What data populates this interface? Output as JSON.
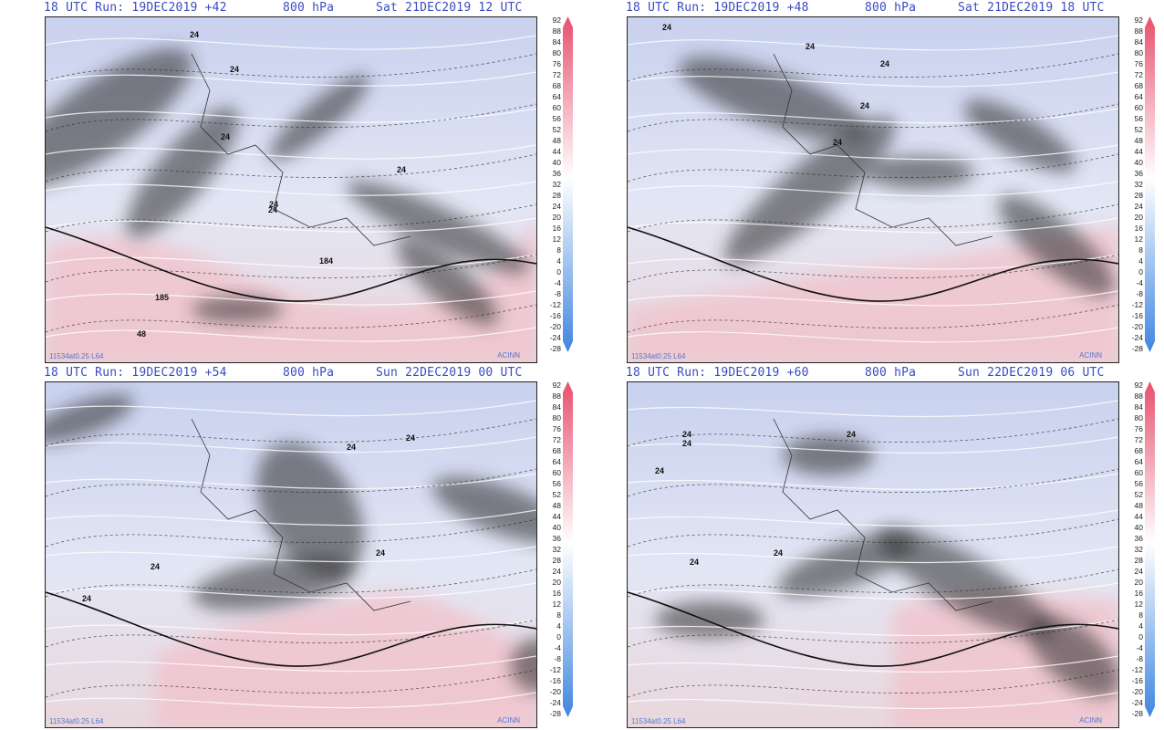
{
  "panels": [
    {
      "run": "18 UTC Run: 19DEC2019 +42",
      "level": "800 hPa",
      "valid": "Sat 21DEC2019 12 UTC",
      "credit": "11534at0.25 L64",
      "brand": "ACINN",
      "contour_labels": [
        "24",
        "24",
        "24",
        "24",
        "24",
        "24",
        "48",
        "184",
        "185"
      ]
    },
    {
      "run": "18 UTC Run: 19DEC2019 +48",
      "level": "800 hPa",
      "valid": "Sat 21DEC2019 18 UTC",
      "credit": "11534at0.25 L64",
      "brand": "ACINN",
      "contour_labels": [
        "24",
        "24",
        "24",
        "24",
        "24"
      ]
    },
    {
      "run": "18 UTC Run: 19DEC2019 +54",
      "level": "800 hPa",
      "valid": "Sun 22DEC2019 00 UTC",
      "credit": "11534at0.25 L64",
      "brand": "ACINN",
      "contour_labels": [
        "24",
        "24",
        "24",
        "24",
        "24"
      ]
    },
    {
      "run": "18 UTC Run: 19DEC2019 +60",
      "level": "800 hPa",
      "valid": "Sun 22DEC2019 06 UTC",
      "credit": "11534at0.25 L64",
      "brand": "ACINN",
      "contour_labels": [
        "24",
        "24",
        "24",
        "24",
        "24",
        "24"
      ]
    }
  ],
  "colorbar": {
    "ticks": [
      "92",
      "88",
      "84",
      "80",
      "76",
      "72",
      "68",
      "64",
      "60",
      "56",
      "52",
      "48",
      "44",
      "40",
      "36",
      "32",
      "28",
      "24",
      "20",
      "16",
      "12",
      "8",
      "4",
      "0",
      "-4",
      "-8",
      "-12",
      "-16",
      "-20",
      "-24",
      "-28"
    ],
    "colors": {
      "high": "#e8506e",
      "mid": "#ffffff",
      "low": "#3f86e0"
    }
  }
}
